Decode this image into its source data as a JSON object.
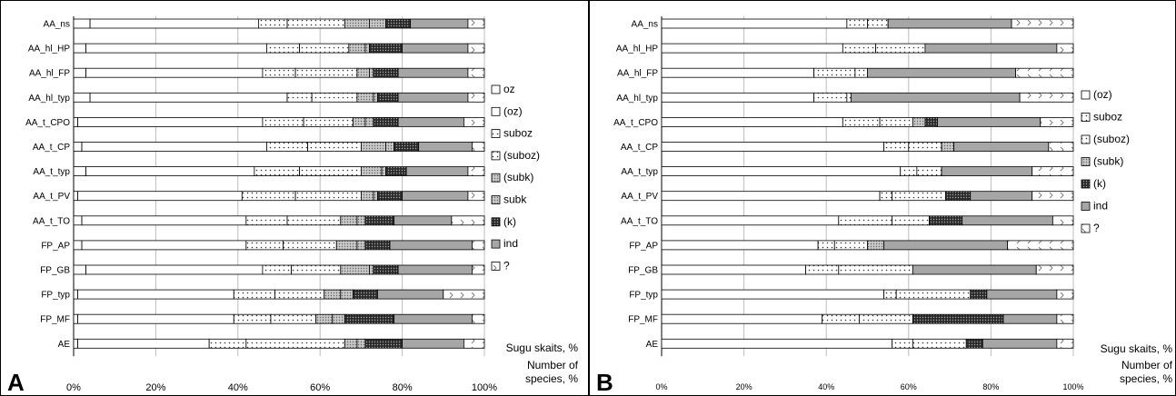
{
  "palette": {
    "oz": "#ffffff",
    "(oz)": "#ffffff",
    "suboz": "#ffffff",
    "(suboz)": "#ffffff",
    "(subk)": "#c8c8c8",
    "subk": "#8c8c8c",
    "(k)": "#2a2a2a",
    "ind": "#a6a6a6",
    "?": "#ffffff"
  },
  "chart_data": [
    {
      "type": "bar",
      "orientation": "horizontal",
      "stacked": true,
      "normalized": true,
      "panel_letter": "A",
      "axis_label_et": "Sugu skaits, %",
      "axis_label_en": "Number of species, %",
      "xlim": [
        0,
        100
      ],
      "x_ticks": [
        "0%",
        "20%",
        "40%",
        "60%",
        "80%",
        "100%"
      ],
      "grid": "vertical",
      "legend_position": "right",
      "categories": [
        "AA_ns",
        "AA_hl_HP",
        "AA_hl_FP",
        "AA_hl_typ",
        "AA_t_CPO",
        "AA_t_CP",
        "AA_t_typ",
        "AA_t_PV",
        "AA_t_TO",
        "FP_AP",
        "FP_GB",
        "FP_typ",
        "FP_MF",
        "AE"
      ],
      "series": [
        {
          "name": "oz",
          "values": [
            4,
            3,
            3,
            4,
            1,
            2,
            3,
            1,
            2,
            2,
            3,
            1,
            1,
            1
          ]
        },
        {
          "name": "(oz)",
          "values": [
            41,
            44,
            43,
            48,
            45,
            45,
            41,
            40,
            40,
            40,
            43,
            38,
            38,
            32
          ]
        },
        {
          "name": "suboz",
          "values": [
            7,
            8,
            8,
            6,
            10,
            10,
            11,
            13,
            10,
            9,
            7,
            10,
            9,
            9
          ]
        },
        {
          "name": "(suboz)",
          "values": [
            14,
            12,
            15,
            11,
            12,
            13,
            15,
            16,
            13,
            13,
            12,
            12,
            11,
            24
          ]
        },
        {
          "name": "(subk)",
          "values": [
            6,
            4,
            3,
            4,
            3,
            6,
            5,
            3,
            4,
            5,
            7,
            4,
            4,
            3
          ]
        },
        {
          "name": "subk",
          "values": [
            4,
            1,
            1,
            1,
            2,
            2,
            1,
            1,
            2,
            2,
            1,
            3,
            3,
            2
          ]
        },
        {
          "name": "(k)",
          "values": [
            6,
            8,
            6,
            5,
            6,
            6,
            5,
            6,
            7,
            6,
            6,
            6,
            12,
            9
          ]
        },
        {
          "name": "ind",
          "values": [
            14,
            16,
            17,
            17,
            16,
            13,
            15,
            16,
            14,
            20,
            18,
            16,
            19,
            15
          ]
        },
        {
          "name": "?",
          "values": [
            4,
            4,
            4,
            4,
            5,
            3,
            4,
            4,
            8,
            3,
            3,
            10,
            3,
            5
          ]
        }
      ]
    },
    {
      "type": "bar",
      "orientation": "horizontal",
      "stacked": true,
      "normalized": true,
      "panel_letter": "B",
      "axis_label_et": "Sugu skaits, %",
      "axis_label_en": "Number of species, %",
      "xlim": [
        0,
        100
      ],
      "x_ticks": [
        "0%",
        "20%",
        "40%",
        "60%",
        "80%",
        "100%"
      ],
      "grid": "vertical",
      "legend_position": "right",
      "categories": [
        "AA_ns",
        "AA_hl_HP",
        "AA_hl_FP",
        "AA_hl_typ",
        "AA_t_CPO",
        "AA_t_CP",
        "AA_t_typ",
        "AA_t_PV",
        "AA_t_TO",
        "FP_AP",
        "FP_GB",
        "FP_typ",
        "FP_MF",
        "AE"
      ],
      "series": [
        {
          "name": "(oz)",
          "values": [
            45,
            44,
            37,
            37,
            44,
            54,
            58,
            53,
            43,
            38,
            35,
            54,
            39,
            56
          ]
        },
        {
          "name": "suboz",
          "values": [
            5,
            8,
            10,
            8,
            9,
            6,
            4,
            3,
            13,
            4,
            8,
            3,
            9,
            5
          ]
        },
        {
          "name": "(suboz)",
          "values": [
            5,
            12,
            3,
            1,
            8,
            8,
            6,
            13,
            9,
            8,
            18,
            18,
            13,
            13
          ]
        },
        {
          "name": "(subk)",
          "values": [
            0,
            0,
            0,
            0,
            3,
            3,
            0,
            0,
            0,
            4,
            0,
            0,
            0,
            0
          ]
        },
        {
          "name": "(k)",
          "values": [
            0,
            0,
            0,
            0,
            3,
            0,
            0,
            6,
            8,
            0,
            0,
            4,
            22,
            4
          ]
        },
        {
          "name": "ind",
          "values": [
            30,
            32,
            36,
            41,
            25,
            23,
            22,
            15,
            22,
            30,
            30,
            17,
            13,
            18
          ]
        },
        {
          "name": "?",
          "values": [
            15,
            4,
            14,
            13,
            8,
            6,
            10,
            10,
            5,
            16,
            9,
            4,
            4,
            4
          ]
        }
      ]
    }
  ]
}
